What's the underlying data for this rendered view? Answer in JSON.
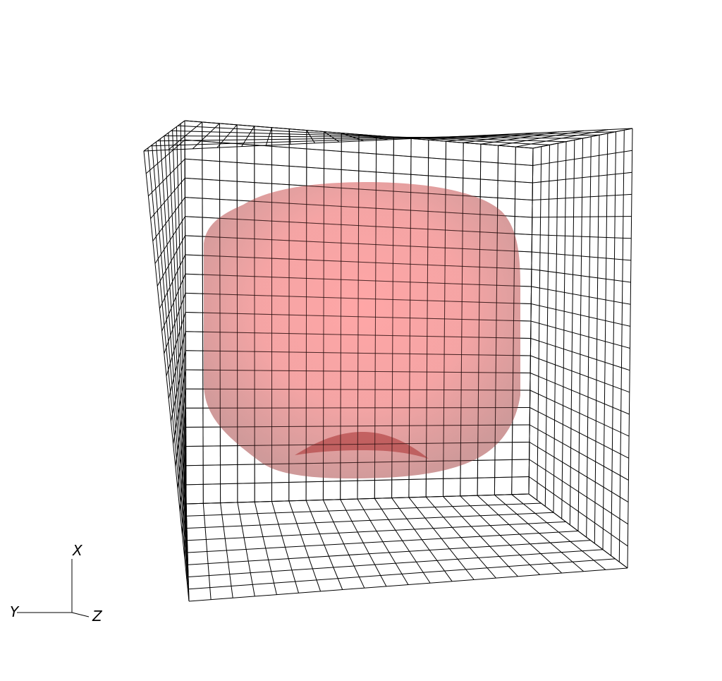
{
  "scene": {
    "grid_divisions": 20,
    "grid_color": "#000000",
    "isosurface_color": "#ff6e6e",
    "isosurface_edge_color": "#b46464",
    "isosurface_inner_fold_color": "#b44646",
    "isosurface_opacity": 0.55
  },
  "axes": {
    "x_label": "X",
    "y_label": "Y",
    "z_label": "Z"
  }
}
